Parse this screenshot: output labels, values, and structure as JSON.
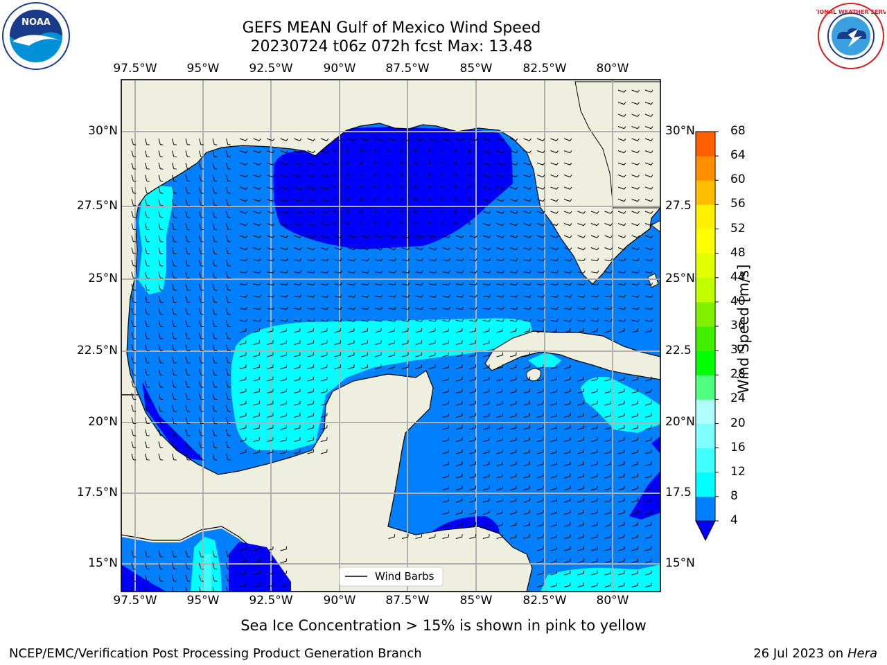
{
  "title": {
    "line1": "GEFS MEAN Gulf of Mexico Wind Speed",
    "line2": "20230724 t06z 072h fcst   Max: 13.48"
  },
  "axes": {
    "top_lon_labels": [
      "97.5°W",
      "95°W",
      "92.5°W",
      "90°W",
      "87.5°W",
      "85°W",
      "82.5°W",
      "80°W"
    ],
    "bottom_lon_labels": [
      "97.5°W",
      "95°W",
      "92.5°W",
      "90°W",
      "87.5°W",
      "85°W",
      "82.5°W",
      "80°W"
    ],
    "left_lat_labels": [
      "30°N",
      "27.5°N",
      "25°N",
      "22.5°N",
      "20°N",
      "17.5°N",
      "15°N"
    ],
    "right_lat_labels": [
      "30°N",
      "27.5",
      "25°N",
      "22.5",
      "20°N",
      "17.5",
      "15°N"
    ],
    "grid": true
  },
  "colorbar": {
    "label": "Wind Speed [m/s]",
    "ticks": [
      "68",
      "64",
      "60",
      "56",
      "52",
      "48",
      "44",
      "40",
      "36",
      "32",
      "28",
      "24",
      "20",
      "16",
      "12",
      "8",
      "4"
    ],
    "colors_bottom_to_top": [
      "#0080ff",
      "#00ffff",
      "#40ffff",
      "#80ffff",
      "#b0ffff",
      "#50ff80",
      "#00ff00",
      "#40ef00",
      "#80ef00",
      "#c0ff00",
      "#e0ff00",
      "#ffff00",
      "#ffef00",
      "#ffbf00",
      "#ff8f00",
      "#ff5f00",
      "#ff2f00",
      "#ff0000"
    ],
    "under_color": "#0000ff"
  },
  "fill_colors": {
    "land": "#efefdf",
    "band_4_8": "#0080ff",
    "band_8_12": "#00ffff",
    "band_12_16": "#40ffff",
    "under_4": "#0000ff"
  },
  "legend": {
    "label": "Wind Barbs"
  },
  "notes": {
    "sea_ice": "Sea Ice Concentration > 15% is shown in pink to yellow"
  },
  "footer": {
    "left": "NCEP/EMC/Verification Post Processing Product Generation Branch",
    "date": "26 Jul 2023 on ",
    "machine": "Hera"
  },
  "logos": {
    "noaa": "NOAA",
    "nws": "NATIONAL WEATHER SERVICE"
  }
}
